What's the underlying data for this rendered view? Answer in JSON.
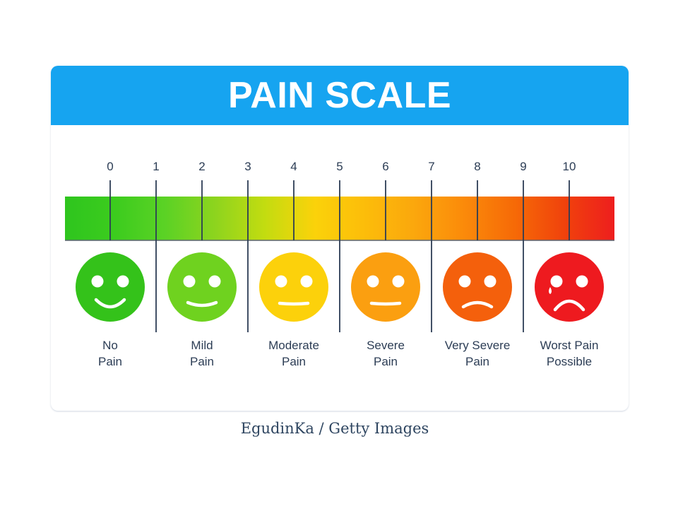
{
  "title": "PAIN SCALE",
  "credit": "EgudinKa / Getty Images",
  "colors": {
    "header": "#16a4f0",
    "tick": "#2c3d55",
    "label": "#2c3d55",
    "segments": [
      "#2ec51e",
      "#3ccc1e",
      "#5bd225",
      "#8dd41e",
      "#c3dc10",
      "#fbd20a",
      "#fcbd0a",
      "#fba70d",
      "#fb8a0a",
      "#f66a07",
      "#f0420c",
      "#ee1e1e"
    ]
  },
  "scale": {
    "numbers": [
      "0",
      "1",
      "2",
      "3",
      "4",
      "5",
      "6",
      "7",
      "8",
      "9",
      "10"
    ]
  },
  "faces": [
    {
      "label_line1": "No",
      "label_line2": "Pain",
      "color": "#34c21a",
      "mouth": "big-smile",
      "icon": "very-happy-face-icon"
    },
    {
      "label_line1": "Mild",
      "label_line2": "Pain",
      "color": "#6fd21f",
      "mouth": "smile",
      "icon": "happy-face-icon"
    },
    {
      "label_line1": "Moderate",
      "label_line2": "Pain",
      "color": "#fcd10b",
      "mouth": "flat",
      "icon": "neutral-face-icon"
    },
    {
      "label_line1": "Severe",
      "label_line2": "Pain",
      "color": "#fb9f10",
      "mouth": "flat",
      "icon": "uneasy-face-icon"
    },
    {
      "label_line1": "Very Severe",
      "label_line2": "Pain",
      "color": "#f4600c",
      "mouth": "frown",
      "icon": "sad-face-icon"
    },
    {
      "label_line1": "Worst Pain",
      "label_line2": "Possible",
      "color": "#ee1a1f",
      "mouth": "big-frown",
      "icon": "crying-face-icon"
    }
  ]
}
